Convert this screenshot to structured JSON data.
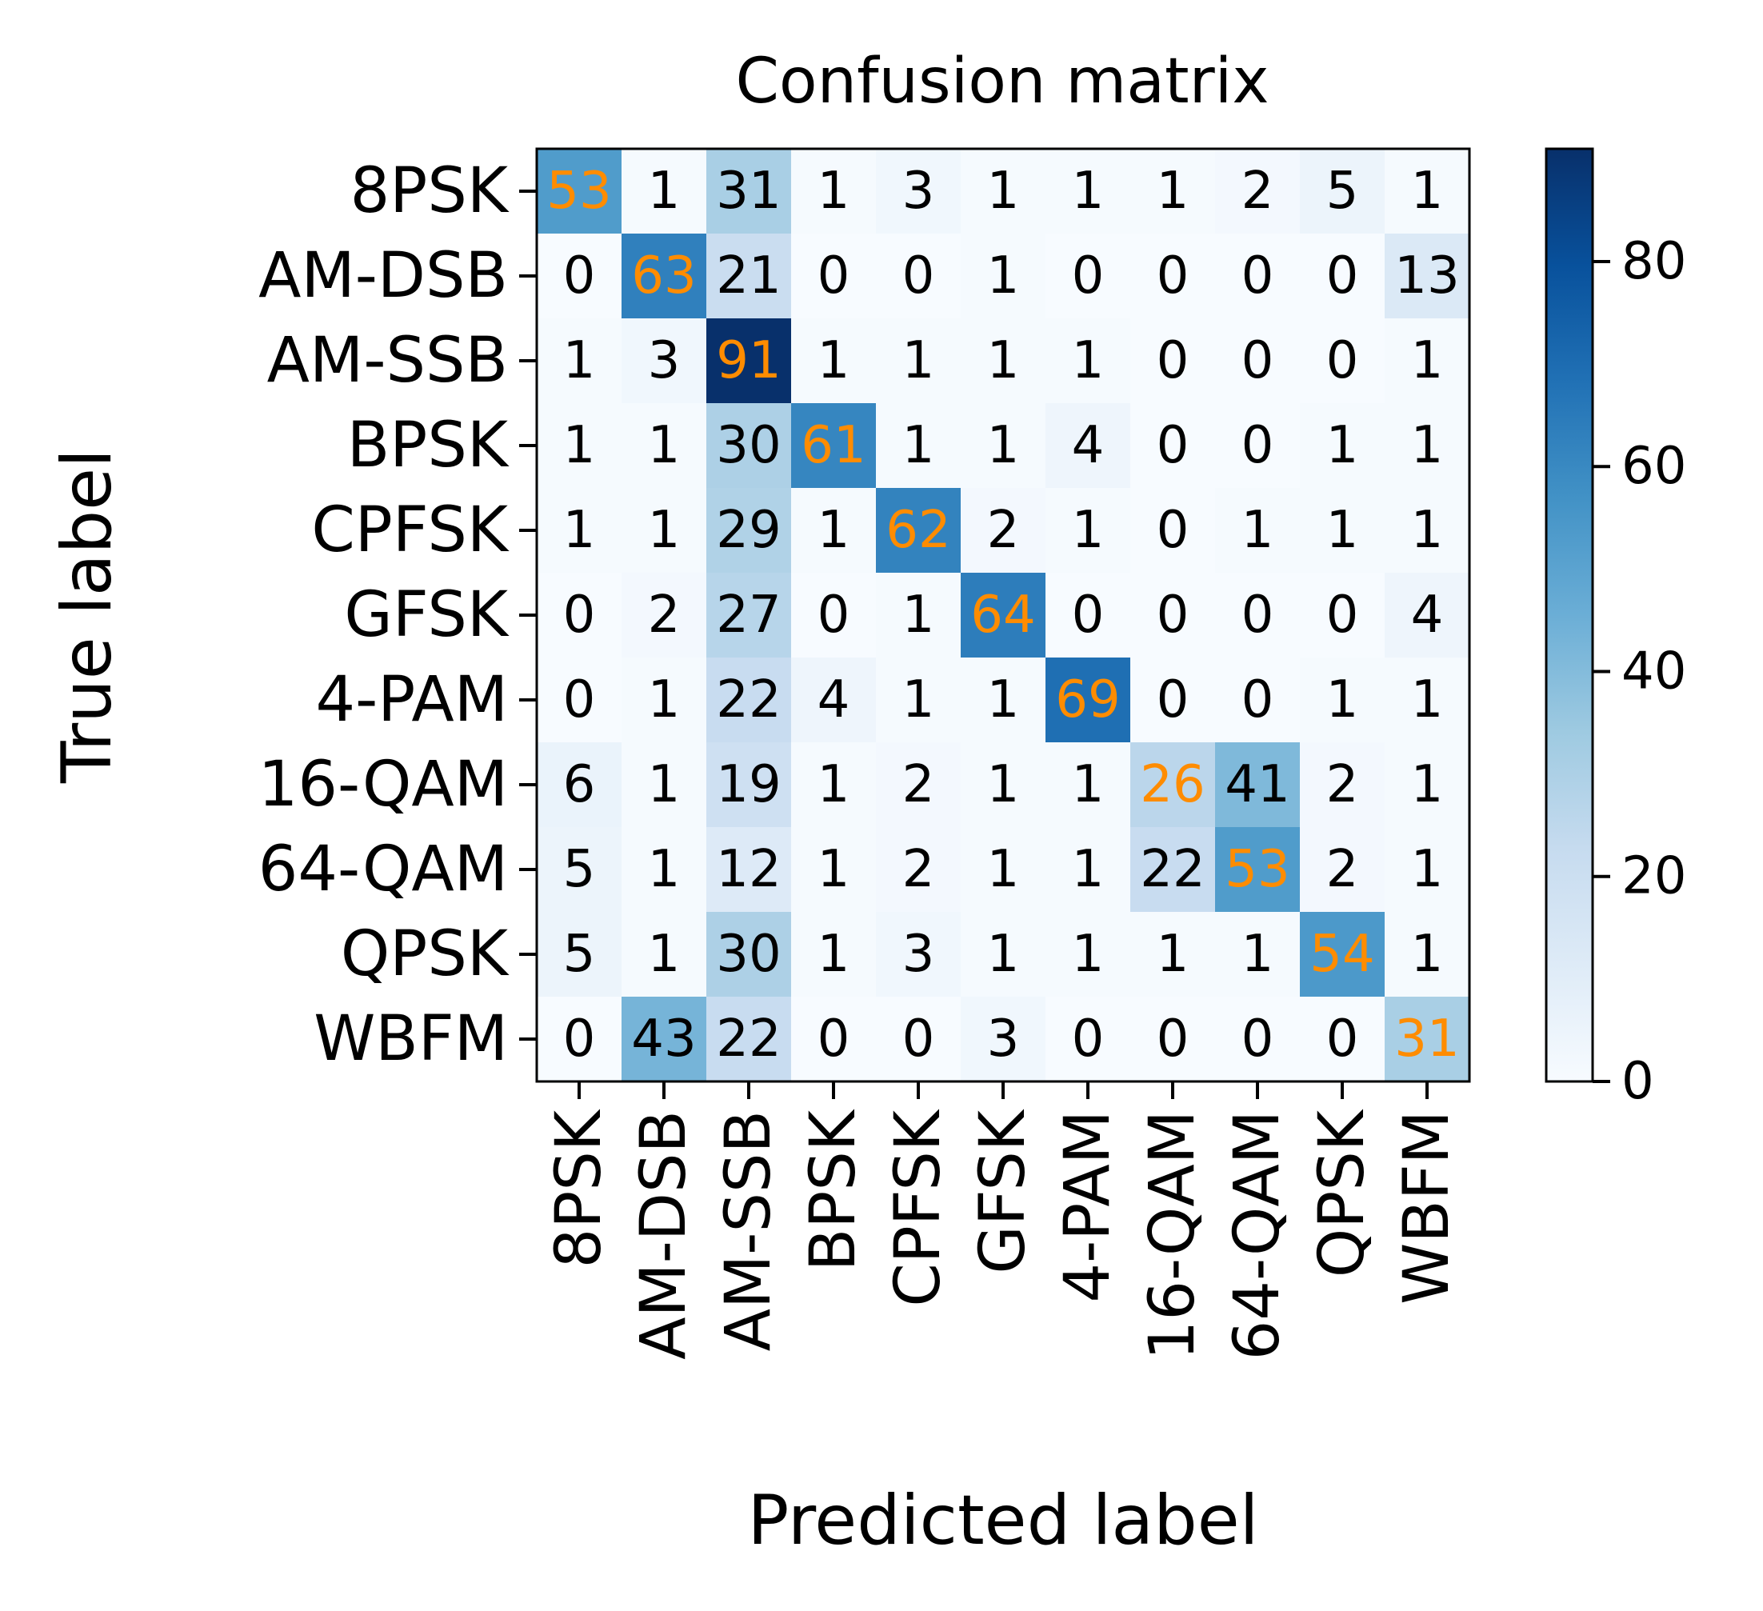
{
  "chart_data": {
    "type": "heatmap",
    "title": "Confusion matrix",
    "xlabel": "Predicted label",
    "ylabel": "True label",
    "x_categories": [
      "8PSK",
      "AM-DSB",
      "AM-SSB",
      "BPSK",
      "CPFSK",
      "GFSK",
      "4-PAM",
      "16-QAM",
      "64-QAM",
      "QPSK",
      "WBFM"
    ],
    "y_categories": [
      "8PSK",
      "AM-DSB",
      "AM-SSB",
      "BPSK",
      "CPFSK",
      "GFSK",
      "4-PAM",
      "16-QAM",
      "64-QAM",
      "QPSK",
      "WBFM"
    ],
    "values": [
      [
        53,
        1,
        31,
        1,
        3,
        1,
        1,
        1,
        2,
        5,
        1
      ],
      [
        0,
        63,
        21,
        0,
        0,
        1,
        0,
        0,
        0,
        0,
        13
      ],
      [
        1,
        3,
        91,
        1,
        1,
        1,
        1,
        0,
        0,
        0,
        1
      ],
      [
        1,
        1,
        30,
        61,
        1,
        1,
        4,
        0,
        0,
        1,
        1
      ],
      [
        1,
        1,
        29,
        1,
        62,
        2,
        1,
        0,
        1,
        1,
        1
      ],
      [
        0,
        2,
        27,
        0,
        1,
        64,
        0,
        0,
        0,
        0,
        4
      ],
      [
        0,
        1,
        22,
        4,
        1,
        1,
        69,
        0,
        0,
        1,
        1
      ],
      [
        6,
        1,
        19,
        1,
        2,
        1,
        1,
        26,
        41,
        2,
        1
      ],
      [
        5,
        1,
        12,
        1,
        2,
        1,
        1,
        22,
        53,
        2,
        1
      ],
      [
        5,
        1,
        30,
        1,
        3,
        1,
        1,
        1,
        1,
        54,
        1
      ],
      [
        0,
        43,
        22,
        0,
        0,
        3,
        0,
        0,
        0,
        0,
        31
      ]
    ],
    "colormap": "Blues",
    "color_range": [
      0,
      91
    ],
    "colorbar_ticks": [
      0,
      20,
      40,
      60,
      80
    ],
    "diagonal_text_color": "#ff8c00",
    "off_diagonal_text_color": "#000000",
    "grid": false
  }
}
